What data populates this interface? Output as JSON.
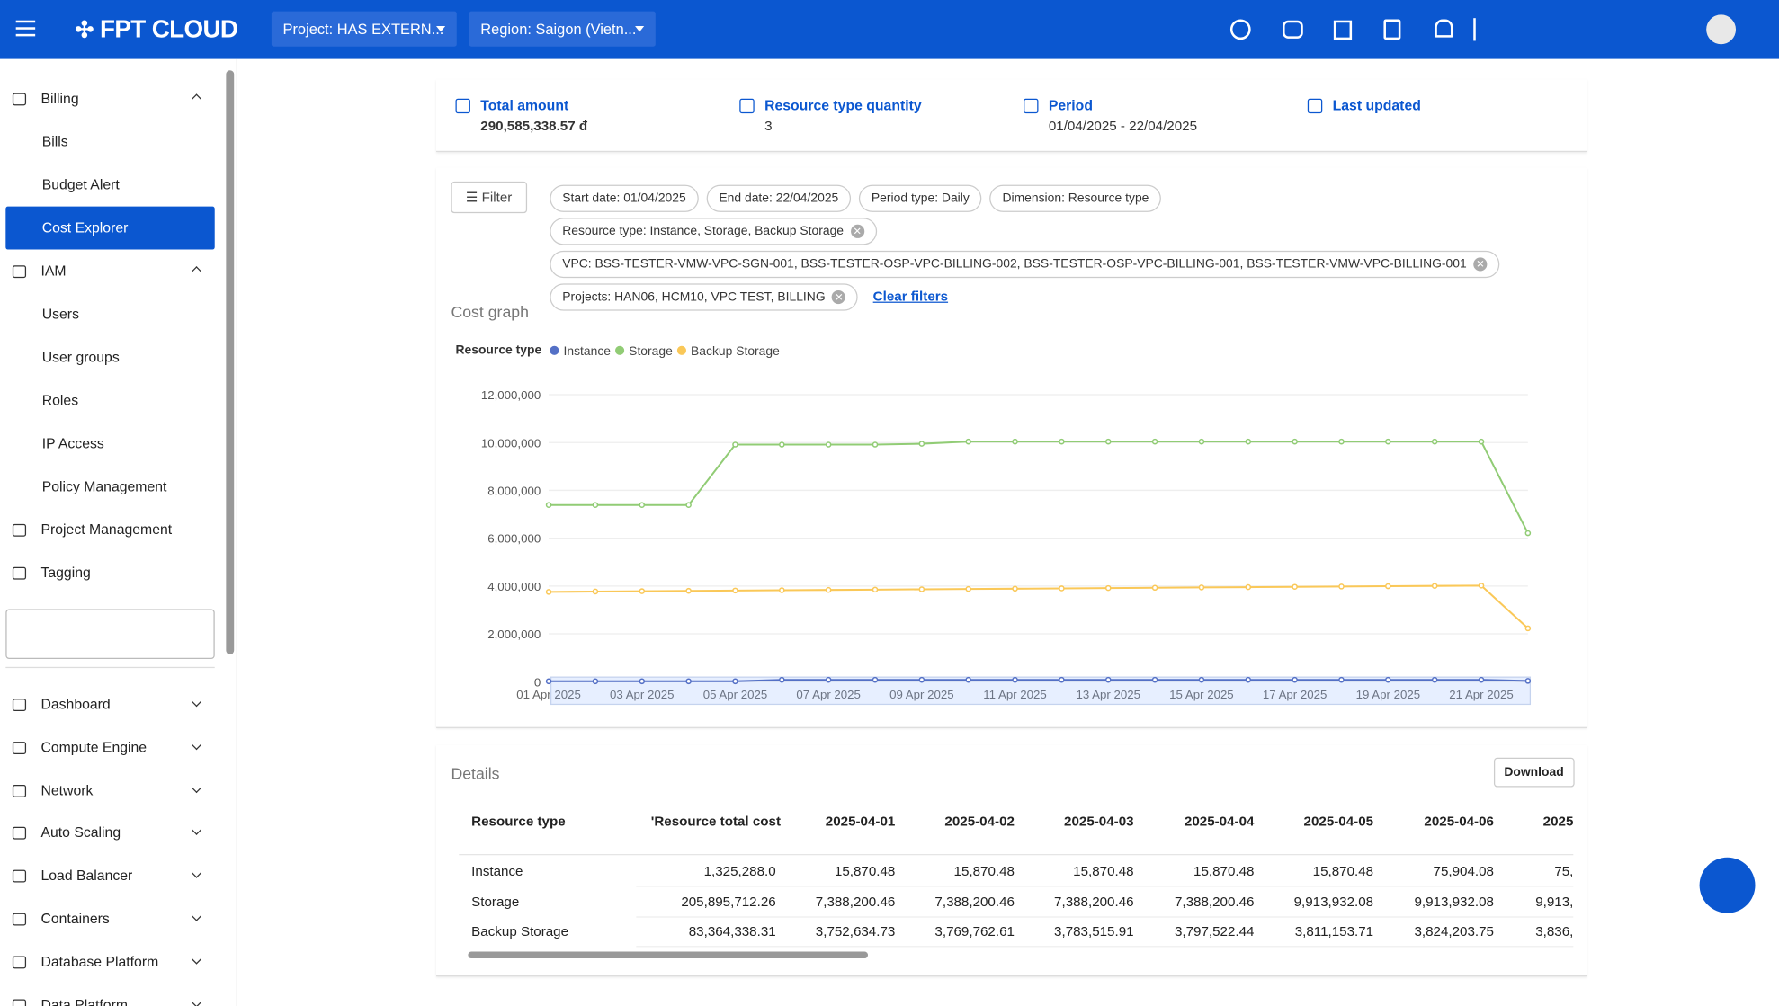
{
  "header": {
    "logo": "FPT CLOUD",
    "project": "Project: HAS EXTERN...",
    "region": "Region: Saigon (Vietn..."
  },
  "sidebar": {
    "groups": [
      {
        "title": "Billing",
        "items": [
          "Bills",
          "Budget Alert",
          "Cost Explorer"
        ]
      },
      {
        "title": "IAM",
        "items": [
          "Users",
          "User groups",
          "Roles",
          "IP Access",
          "Policy Management"
        ]
      }
    ],
    "links": [
      "Project Management",
      "Tagging"
    ],
    "services": [
      "Dashboard",
      "Compute Engine",
      "Network",
      "Auto Scaling",
      "Load Balancer",
      "Containers",
      "Database Platform",
      "Data Platform"
    ]
  },
  "summary": [
    {
      "label": "Total amount",
      "value": "290,585,338.57 đ"
    },
    {
      "label": "Resource type quantity",
      "value": "3"
    },
    {
      "label": "Period",
      "value": "01/04/2025 - 22/04/2025"
    },
    {
      "label": "Last updated"
    }
  ],
  "filter": {
    "button": "Filter",
    "chips": [
      "Start date: 01/04/2025",
      "End date: 22/04/2025",
      "Period type: Daily",
      "Dimension: Resource type",
      "Resource type: Instance, Storage, Backup Storage",
      "VPC: BSS-TESTER-VMW-VPC-SGN-001, BSS-TESTER-OSP-VPC-BILLING-002, BSS-TESTER-OSP-VPC-BILLING-001, BSS-TESTER-VMW-VPC-BILLING-001",
      "Projects: HAN06, HCM10, VPC TEST, BILLING"
    ],
    "clear": "Clear filters"
  },
  "cost_graph_title": "Cost graph",
  "chart_data": {
    "type": "line",
    "legend_title": "Resource type",
    "categories": [
      "01 Apr 2025",
      null,
      "03 Apr 2025",
      null,
      "05 Apr 2025",
      null,
      "07 Apr 2025",
      null,
      "09 Apr 2025",
      null,
      "11 Apr 2025",
      null,
      "13 Apr 2025",
      null,
      "15 Apr 2025",
      null,
      "17 Apr 2025",
      null,
      "19 Apr 2025",
      null,
      "21 Apr 2025",
      null
    ],
    "series": [
      {
        "name": "Instance",
        "color": "#5470c6",
        "values": [
          15870.48,
          15870.48,
          15870.48,
          15870.48,
          15870.48,
          75904.08,
          75904,
          75904,
          75904,
          75904,
          75904,
          75904,
          75904,
          75904,
          75904,
          75904,
          75904,
          75904,
          75904,
          75904,
          75904,
          31000
        ]
      },
      {
        "name": "Storage",
        "color": "#91cc75",
        "values": [
          7388200.46,
          7388200.46,
          7388200.46,
          7388200.46,
          9913932.08,
          9913932.08,
          9913932,
          9913932,
          9950000,
          10040000,
          10040000,
          10040000,
          10040000,
          10040000,
          10040000,
          10040000,
          10040000,
          10040000,
          10040000,
          10040000,
          10040000,
          6210000
        ]
      },
      {
        "name": "Backup Storage",
        "color": "#fac858",
        "values": [
          3752634.73,
          3769762.61,
          3783515.91,
          3797522.44,
          3811153.71,
          3824203.75,
          3836000,
          3849000,
          3862000,
          3875000,
          3888000,
          3901000,
          3914000,
          3927000,
          3940000,
          3953000,
          3966000,
          3979000,
          3992000,
          4005000,
          4018000,
          2230000
        ]
      }
    ],
    "ylim": [
      0,
      12000000
    ],
    "yticks": [
      0,
      {
        "value": 2000000,
        "label": "2,000,000"
      },
      {
        "value": 4000000,
        "label": "4,000,000"
      },
      {
        "value": 6000000,
        "label": "6,000,000"
      },
      {
        "value": 8000000,
        "label": "8,000,000"
      },
      {
        "value": 10000000,
        "label": "10,000,000"
      },
      {
        "value": 12000000,
        "label": "12,000,000"
      }
    ],
    "grid": true
  },
  "details": {
    "title": "Details",
    "download": "Download",
    "columns": [
      "Resource type",
      "'Resource total cost",
      "2025-04-01",
      "2025-04-02",
      "2025-04-03",
      "2025-04-04",
      "2025-04-05",
      "2025-04-06",
      "2025"
    ],
    "rows": [
      [
        "Instance",
        "1,325,288.0",
        "15,870.48",
        "15,870.48",
        "15,870.48",
        "15,870.48",
        "15,870.48",
        "75,904.08",
        "75,"
      ],
      [
        "Storage",
        "205,895,712.26",
        "7,388,200.46",
        "7,388,200.46",
        "7,388,200.46",
        "7,388,200.46",
        "9,913,932.08",
        "9,913,932.08",
        "9,913,"
      ],
      [
        "Backup Storage",
        "83,364,338.31",
        "3,752,634.73",
        "3,769,762.61",
        "3,783,515.91",
        "3,797,522.44",
        "3,811,153.71",
        "3,824,203.75",
        "3,836,"
      ]
    ]
  }
}
